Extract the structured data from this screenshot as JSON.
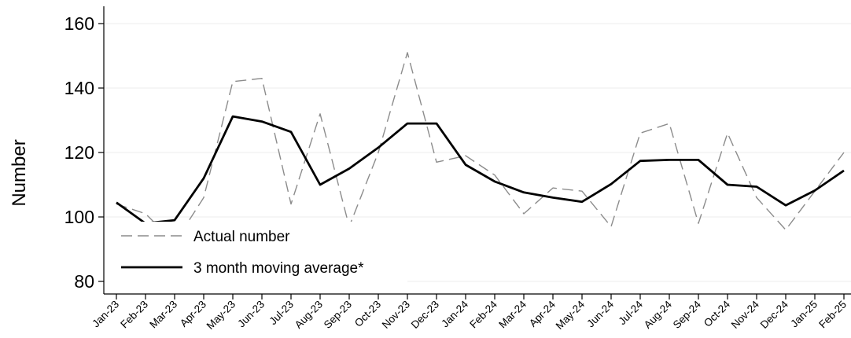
{
  "chart_data": {
    "type": "line",
    "title": "",
    "xlabel": "",
    "ylabel": "Number",
    "ylim": [
      75,
      165
    ],
    "yticks": [
      80,
      100,
      120,
      140,
      160
    ],
    "grid": "horizontal",
    "legend_position": "bottom-left",
    "categories": [
      "Jan-23",
      "Feb-23",
      "Mar-23",
      "Apr-23",
      "May-23",
      "Jun-23",
      "Jul-23",
      "Aug-23",
      "Sep-23",
      "Oct-23",
      "Nov-23",
      "Dec-23",
      "Jan-24",
      "Feb-24",
      "Mar-24",
      "Apr-24",
      "May-24",
      "Jun-24",
      "Jul-24",
      "Aug-24",
      "Sep-24",
      "Oct-24",
      "Nov-24",
      "Dec-24",
      "Jan-25",
      "Feb-25"
    ],
    "series": [
      {
        "name": "Actual number",
        "style": "dashed",
        "color": "#8c8c8c",
        "values": [
          104,
          101,
          92,
          106,
          142,
          143,
          104,
          132,
          97,
          120,
          151,
          117,
          119,
          113,
          101,
          109,
          108,
          97,
          126,
          129,
          98,
          126,
          106,
          96,
          108,
          120
        ]
      },
      {
        "name": "3 month moving average*",
        "style": "solid",
        "color": "#000000",
        "values": [
          104.5,
          98,
          99,
          112,
          131.2,
          129.6,
          126.4,
          110,
          115,
          121.5,
          129,
          129,
          116.2,
          111,
          107.6,
          106,
          104.7,
          110.2,
          117.4,
          117.7,
          117.7,
          110,
          109.4,
          103.6,
          108.2,
          114.4
        ]
      }
    ]
  }
}
